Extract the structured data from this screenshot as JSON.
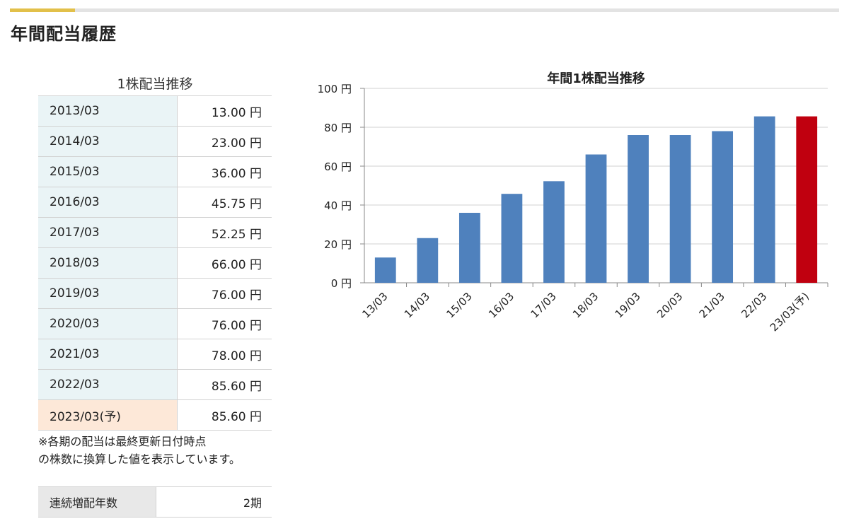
{
  "section": {
    "title": "年間配当履歴"
  },
  "table": {
    "caption": "1株配当推移",
    "rows": [
      {
        "period": "2013/03",
        "amount": "13.00 円"
      },
      {
        "period": "2014/03",
        "amount": "23.00 円"
      },
      {
        "period": "2015/03",
        "amount": "36.00 円"
      },
      {
        "period": "2016/03",
        "amount": "45.75 円"
      },
      {
        "period": "2017/03",
        "amount": "52.25 円"
      },
      {
        "period": "2018/03",
        "amount": "66.00 円"
      },
      {
        "period": "2019/03",
        "amount": "76.00 円"
      },
      {
        "period": "2020/03",
        "amount": "76.00 円"
      },
      {
        "period": "2021/03",
        "amount": "78.00 円"
      },
      {
        "period": "2022/03",
        "amount": "85.60 円"
      },
      {
        "period": "2023/03(予)",
        "amount": "85.60 円"
      }
    ]
  },
  "note": {
    "line1": "※各期の配当は最終更新日付時点",
    "line2": "の株数に換算した値を表示しています。"
  },
  "streak": {
    "label": "連続増配年数",
    "value": "2期"
  },
  "colors": {
    "actual": "#4f81bd",
    "forecast": "#c0000f",
    "accent": "#e2c04a"
  },
  "chart_data": {
    "type": "bar",
    "title": "年間1株配当推移",
    "categories": [
      "13/03",
      "14/03",
      "15/03",
      "16/03",
      "17/03",
      "18/03",
      "19/03",
      "20/03",
      "21/03",
      "22/03",
      "23/03(予)"
    ],
    "values": [
      13.0,
      23.0,
      36.0,
      45.75,
      52.25,
      66.0,
      76.0,
      76.0,
      78.0,
      85.6,
      85.6
    ],
    "forecast_index": 10,
    "ylim": [
      0,
      100
    ],
    "yticks": [
      0,
      20,
      40,
      60,
      80,
      100
    ],
    "ytick_labels": [
      "0 円",
      "20 円",
      "40 円",
      "60 円",
      "80 円",
      "100 円"
    ],
    "grid": true,
    "legend": "none"
  }
}
